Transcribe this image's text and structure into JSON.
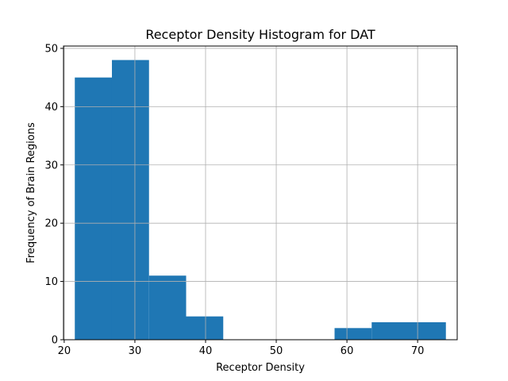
{
  "chart_data": {
    "type": "bar",
    "title": "Receptor Density Histogram for DAT",
    "xlabel": "Receptor Density",
    "ylabel": "Frequency of Brain Regions",
    "bin_edges": [
      21.5,
      26.75,
      32.0,
      37.25,
      42.5,
      47.75,
      53.0,
      58.25,
      63.5,
      68.75,
      74.0
    ],
    "values": [
      45,
      48,
      11,
      4,
      0,
      0,
      0,
      2,
      3,
      3
    ],
    "xlim": [
      19.9,
      75.6
    ],
    "ylim": [
      0,
      50.4
    ],
    "xticks": [
      20,
      30,
      40,
      50,
      60,
      70
    ],
    "yticks": [
      0,
      10,
      20,
      30,
      40,
      50
    ],
    "grid": true,
    "bar_color": "#1f77b4",
    "grid_color": "#b0b0b0"
  }
}
